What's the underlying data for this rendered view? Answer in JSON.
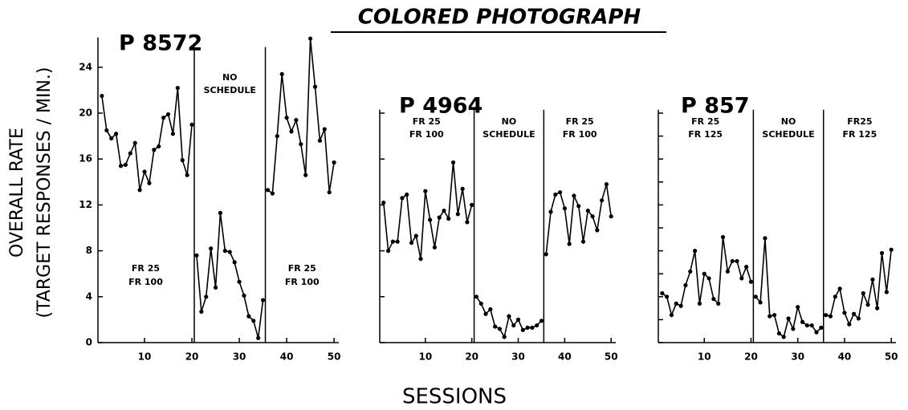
{
  "title": "COLORED PHOTOGRAPH",
  "ylabel": [
    "OVERALL RATE",
    "(TARGET RESPONSES / MIN.)"
  ],
  "xlabel": "SESSIONS",
  "chart_data": [
    {
      "type": "line",
      "title": "P 8572",
      "color": "#000000",
      "x": [
        1,
        2,
        3,
        4,
        5,
        6,
        7,
        8,
        9,
        10,
        11,
        12,
        13,
        14,
        15,
        16,
        17,
        18,
        19,
        20,
        21,
        22,
        23,
        24,
        25,
        26,
        27,
        28,
        29,
        30,
        31,
        32,
        33,
        34,
        35,
        36,
        37,
        38,
        39,
        40,
        41,
        42,
        43,
        44,
        45,
        46,
        47,
        48,
        49,
        50
      ],
      "values": [
        21.5,
        18.5,
        17.8,
        18.2,
        15.4,
        15.5,
        16.5,
        17.4,
        13.3,
        14.9,
        13.9,
        16.8,
        17.1,
        19.6,
        19.9,
        18.2,
        22.2,
        15.9,
        14.6,
        19,
        7.6,
        2.7,
        4,
        8.2,
        4.8,
        11.3,
        8,
        7.9,
        7,
        5.3,
        4.1,
        2.3,
        1.9,
        0.4,
        3.7,
        13.3,
        13,
        18,
        23.4,
        19.6,
        18.4,
        19.4,
        17.3,
        14.6,
        26.5,
        22.3,
        17.6,
        18.6,
        13.1,
        15.7
      ],
      "xlim": [
        0,
        51
      ],
      "xticks": [
        10,
        20,
        30,
        40,
        50
      ],
      "ylim": [
        0,
        26.6
      ],
      "yticks": [
        0,
        4,
        8,
        12,
        16,
        20,
        24
      ],
      "phase_lines": [
        20.5,
        35.5
      ],
      "phases": [
        [
          "FR 25",
          "FR 100"
        ],
        [
          "NO",
          "SCHEDULE"
        ],
        [
          "FR 25",
          "FR 100"
        ]
      ]
    },
    {
      "type": "line",
      "title": "P 4964",
      "color": "#000000",
      "x": [
        1,
        2,
        3,
        4,
        5,
        6,
        7,
        8,
        9,
        10,
        11,
        12,
        13,
        14,
        15,
        16,
        17,
        18,
        19,
        20,
        21,
        22,
        23,
        24,
        25,
        26,
        27,
        28,
        29,
        30,
        31,
        32,
        33,
        34,
        35,
        36,
        37,
        38,
        39,
        40,
        41,
        42,
        43,
        44,
        45,
        46,
        47,
        48,
        49,
        50
      ],
      "values": [
        12.2,
        8,
        8.8,
        8.8,
        12.6,
        12.9,
        8.7,
        9.3,
        7.3,
        13.2,
        10.7,
        8.3,
        10.9,
        11.5,
        10.8,
        15.7,
        11.2,
        13.4,
        10.5,
        12,
        4,
        3.4,
        2.5,
        2.9,
        1.4,
        1.2,
        0.5,
        2.3,
        1.5,
        2,
        1.1,
        1.3,
        1.3,
        1.5,
        1.9,
        7.7,
        11.4,
        12.9,
        13.1,
        11.7,
        8.6,
        12.8,
        11.9,
        8.8,
        11.5,
        11,
        9.8,
        12.4,
        13.8,
        11
      ],
      "xlim": [
        0,
        51
      ],
      "xticks": [
        10,
        20,
        30,
        40,
        50
      ],
      "ylim": [
        0,
        20.3
      ],
      "ytick_marks": [
        0,
        4,
        8,
        12,
        16,
        20
      ],
      "phase_lines": [
        20.5,
        35.5
      ],
      "phases": [
        [
          "FR 25",
          "FR 100"
        ],
        [
          "NO",
          "SCHEDULE"
        ],
        [
          "FR 25",
          "FR 100"
        ]
      ]
    },
    {
      "type": "line",
      "title": "P 857",
      "color": "#000000",
      "x": [
        1,
        2,
        3,
        4,
        5,
        6,
        7,
        8,
        9,
        10,
        11,
        12,
        13,
        14,
        15,
        16,
        17,
        18,
        19,
        20,
        21,
        22,
        23,
        24,
        25,
        26,
        27,
        28,
        29,
        30,
        31,
        32,
        33,
        34,
        35,
        36,
        37,
        38,
        39,
        40,
        41,
        42,
        43,
        44,
        45,
        46,
        47,
        48,
        49,
        50
      ],
      "values": [
        4.3,
        4,
        2.4,
        3.4,
        3.2,
        5,
        6.2,
        8,
        3.4,
        6,
        5.6,
        3.8,
        3.4,
        9.2,
        6.2,
        7.1,
        7.1,
        5.6,
        6.6,
        5.3,
        4,
        3.5,
        9.1,
        2.3,
        2.4,
        0.8,
        0.5,
        2.1,
        1.2,
        3.1,
        1.8,
        1.5,
        1.5,
        0.9,
        1.3,
        2.4,
        2.3,
        4,
        4.7,
        2.6,
        1.6,
        2.5,
        2.1,
        4.3,
        3.3,
        5.5,
        3,
        7.8,
        4.4,
        8.1
      ],
      "xlim": [
        0,
        51
      ],
      "xticks": [
        10,
        20,
        30,
        40,
        50
      ],
      "ylim": [
        0,
        20.3
      ],
      "ytick_marks": [
        0,
        2,
        4,
        6,
        8,
        10,
        12,
        14,
        16,
        18,
        20
      ],
      "phase_lines": [
        20.5,
        35.5
      ],
      "phases": [
        [
          "FR 25",
          "FR 125"
        ],
        [
          "NO",
          "SCHEDULE"
        ],
        [
          "FR25",
          "FR 125"
        ]
      ]
    }
  ]
}
